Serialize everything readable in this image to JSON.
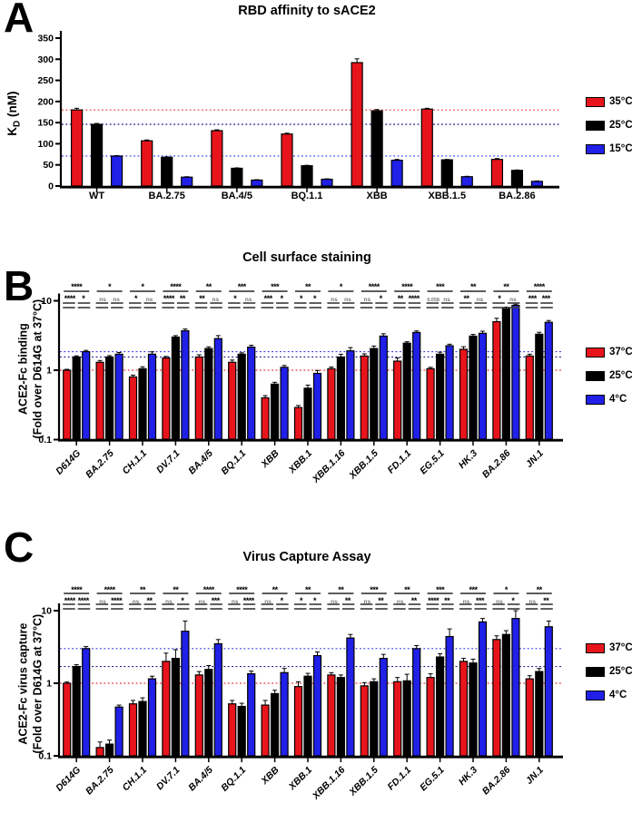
{
  "colors": {
    "red": "#e8141c",
    "black": "#000000",
    "blue": "#2020e8",
    "ref_red": "#ee3333",
    "ref_navy": "#10108c",
    "ref_blue": "#3333ee"
  },
  "chart_data": [
    {
      "id": "A",
      "type": "bar",
      "panel_letter": "A",
      "title": "RBD affinity to sACE2",
      "ylabel_base": "K",
      "ylabel_sub": "D",
      "ylabel_rest": " (nM)",
      "scale": "linear",
      "ylim": [
        0,
        350
      ],
      "yticks": [
        0,
        50,
        100,
        150,
        200,
        250,
        300,
        350
      ],
      "categories": [
        "WT",
        "BA.2.75",
        "BA.4/5",
        "BQ.1.1",
        "XBB",
        "XBB.1.5",
        "BA.2.86"
      ],
      "series": [
        {
          "name": "35°C",
          "color": "#e8141c",
          "values": [
            180,
            107,
            131,
            123,
            292,
            182,
            63
          ],
          "errors": [
            4,
            2,
            2,
            2,
            9,
            2,
            2
          ]
        },
        {
          "name": "25°C",
          "color": "#000000",
          "values": [
            146,
            68,
            42,
            48,
            178,
            62,
            37
          ],
          "errors": [
            2,
            1,
            1,
            1,
            3,
            1,
            1
          ]
        },
        {
          "name": "15°C",
          "color": "#2020e8",
          "values": [
            71,
            21,
            14,
            16,
            61,
            22,
            11
          ],
          "errors": [
            1,
            1,
            1,
            1,
            2,
            1,
            1
          ]
        }
      ],
      "ref_lines": [
        {
          "value": 180,
          "color": "#ee3333"
        },
        {
          "value": 146,
          "color": "#10108c"
        },
        {
          "value": 71,
          "color": "#3333ee"
        }
      ]
    },
    {
      "id": "B",
      "type": "bar",
      "panel_letter": "B",
      "title": "Cell surface staining",
      "ylabel_line1": "ACE2-Fc binding",
      "ylabel_line2": "(Fold over D614G at 37°C)",
      "scale": "log",
      "ylim": [
        0.1,
        10
      ],
      "yticks": [
        0.1,
        1,
        10
      ],
      "categories": [
        "D614G",
        "BA.2.75",
        "CH.1.1",
        "DV.7.1",
        "BA.4/5",
        "BQ.1.1",
        "XBB",
        "XBB.1",
        "XBB.1.16",
        "XBB.1.5",
        "FD.1.1",
        "EG.5.1",
        "HK.3",
        "BA.2.86",
        "JN.1"
      ],
      "series": [
        {
          "name": "37°C",
          "color": "#e8141c",
          "values": [
            1.0,
            1.3,
            0.8,
            1.5,
            1.55,
            1.3,
            0.4,
            0.29,
            1.05,
            1.6,
            1.35,
            1.05,
            2.0,
            5.0,
            1.6
          ],
          "errors": [
            0.03,
            0.08,
            0.05,
            0.08,
            0.12,
            0.1,
            0.03,
            0.02,
            0.06,
            0.12,
            0.15,
            0.05,
            0.18,
            0.6,
            0.1
          ]
        },
        {
          "name": "25°C",
          "color": "#000000",
          "values": [
            1.55,
            1.55,
            1.05,
            3.0,
            2.05,
            1.7,
            0.63,
            0.55,
            1.55,
            2.05,
            2.45,
            1.7,
            3.1,
            7.7,
            3.3
          ],
          "errors": [
            0.06,
            0.07,
            0.07,
            0.15,
            0.12,
            0.08,
            0.04,
            0.06,
            0.15,
            0.18,
            0.12,
            0.12,
            0.18,
            0.4,
            0.22
          ]
        },
        {
          "name": "4°C",
          "color": "#2020e8",
          "values": [
            1.85,
            1.7,
            1.7,
            3.7,
            2.85,
            2.15,
            1.1,
            0.9,
            1.9,
            3.1,
            3.5,
            2.25,
            3.4,
            8.6,
            4.9
          ],
          "errors": [
            0.08,
            0.1,
            0.14,
            0.22,
            0.3,
            0.14,
            0.07,
            0.09,
            0.22,
            0.25,
            0.18,
            0.12,
            0.25,
            0.35,
            0.3
          ]
        }
      ],
      "ref_lines": [
        {
          "value": 1.0,
          "color": "#ee3333"
        },
        {
          "value": 1.55,
          "color": "#10108c"
        },
        {
          "value": 1.85,
          "color": "#3333ee"
        }
      ],
      "significance": [
        {
          "top": "****",
          "left": "****",
          "right": "*"
        },
        {
          "top": "*",
          "left": "ns",
          "right": "ns"
        },
        {
          "top": "*",
          "left": "*",
          "right": "ns"
        },
        {
          "top": "****",
          "left": "****",
          "right": "**"
        },
        {
          "top": "**",
          "left": "**",
          "right": "ns"
        },
        {
          "top": "***",
          "left": "*",
          "right": "ns"
        },
        {
          "top": "***",
          "left": "***",
          "right": "*"
        },
        {
          "top": "**",
          "left": "*",
          "right": "*"
        },
        {
          "top": "*",
          "left": "ns",
          "right": "ns"
        },
        {
          "top": "****",
          "left": "ns",
          "right": "*"
        },
        {
          "top": "****",
          "left": "**",
          "right": "****"
        },
        {
          "top": "***",
          "left": "0.058",
          "right": "ns"
        },
        {
          "top": "**",
          "left": "**",
          "right": "ns"
        },
        {
          "top": "**",
          "left": "*",
          "right": "ns"
        },
        {
          "top": "****",
          "left": "***",
          "right": "***"
        }
      ]
    },
    {
      "id": "C",
      "type": "bar",
      "panel_letter": "C",
      "title": "Virus Capture Assay",
      "ylabel_line1": "ACE2-Fc virus capture",
      "ylabel_line2": "(Fold over D614G at 37°C)",
      "scale": "log",
      "ylim": [
        0.1,
        10
      ],
      "yticks": [
        0.1,
        1,
        10
      ],
      "categories": [
        "D614G",
        "BA.2.75",
        "CH.1.1",
        "DV.7.1",
        "BA.4/5",
        "BQ.1.1",
        "XBB",
        "XBB.1",
        "XBB.1.16",
        "XBB.1.5",
        "FD.1.1",
        "EG.5.1",
        "HK.3",
        "BA.2.86",
        "JN.1"
      ],
      "series": [
        {
          "name": "37°C",
          "color": "#e8141c",
          "values": [
            1.0,
            0.13,
            0.52,
            2.0,
            1.3,
            0.52,
            0.5,
            0.9,
            1.3,
            0.92,
            1.05,
            1.2,
            2.0,
            4.0,
            1.15
          ],
          "errors": [
            0.04,
            0.025,
            0.06,
            0.6,
            0.15,
            0.06,
            0.08,
            0.15,
            0.1,
            0.1,
            0.15,
            0.15,
            0.2,
            0.5,
            0.12
          ]
        },
        {
          "name": "25°C",
          "color": "#000000",
          "values": [
            1.7,
            0.145,
            0.56,
            2.2,
            1.55,
            0.48,
            0.72,
            1.25,
            1.2,
            1.05,
            1.08,
            2.3,
            1.9,
            4.7,
            1.45
          ],
          "errors": [
            0.1,
            0.02,
            0.07,
            0.7,
            0.2,
            0.05,
            0.08,
            0.12,
            0.1,
            0.1,
            0.25,
            0.25,
            0.25,
            0.6,
            0.15
          ]
        },
        {
          "name": "4°C",
          "color": "#2020e8",
          "values": [
            3.0,
            0.47,
            1.15,
            5.2,
            3.5,
            1.35,
            1.4,
            2.4,
            4.2,
            2.2,
            3.0,
            4.4,
            7.0,
            7.8,
            6.0
          ],
          "errors": [
            0.2,
            0.03,
            0.1,
            2.0,
            0.5,
            0.12,
            0.2,
            0.3,
            0.5,
            0.3,
            0.3,
            1.2,
            0.8,
            2.2,
            1.2
          ]
        }
      ],
      "ref_lines": [
        {
          "value": 1.0,
          "color": "#ee3333"
        },
        {
          "value": 1.7,
          "color": "#10108c"
        },
        {
          "value": 3.0,
          "color": "#3333ee"
        }
      ],
      "significance": [
        {
          "top": "****",
          "left": "****",
          "right": "****"
        },
        {
          "top": "****",
          "left": "ns",
          "right": "****"
        },
        {
          "top": "**",
          "left": "ns",
          "right": "**"
        },
        {
          "top": "**",
          "left": "ns",
          "right": "*"
        },
        {
          "top": "****",
          "left": "ns",
          "right": "***"
        },
        {
          "top": "****",
          "left": "ns",
          "right": "****"
        },
        {
          "top": "**",
          "left": "ns",
          "right": "*"
        },
        {
          "top": "**",
          "left": "*",
          "right": "*"
        },
        {
          "top": "**",
          "left": "ns",
          "right": "**"
        },
        {
          "top": "***",
          "left": "ns",
          "right": "**"
        },
        {
          "top": "**",
          "left": "ns",
          "right": "**"
        },
        {
          "top": "***",
          "left": "****",
          "right": "**"
        },
        {
          "top": "***",
          "left": "ns",
          "right": "***"
        },
        {
          "top": "*",
          "left": "ns",
          "right": "*"
        },
        {
          "top": "**",
          "left": "ns",
          "right": "**"
        }
      ]
    }
  ]
}
